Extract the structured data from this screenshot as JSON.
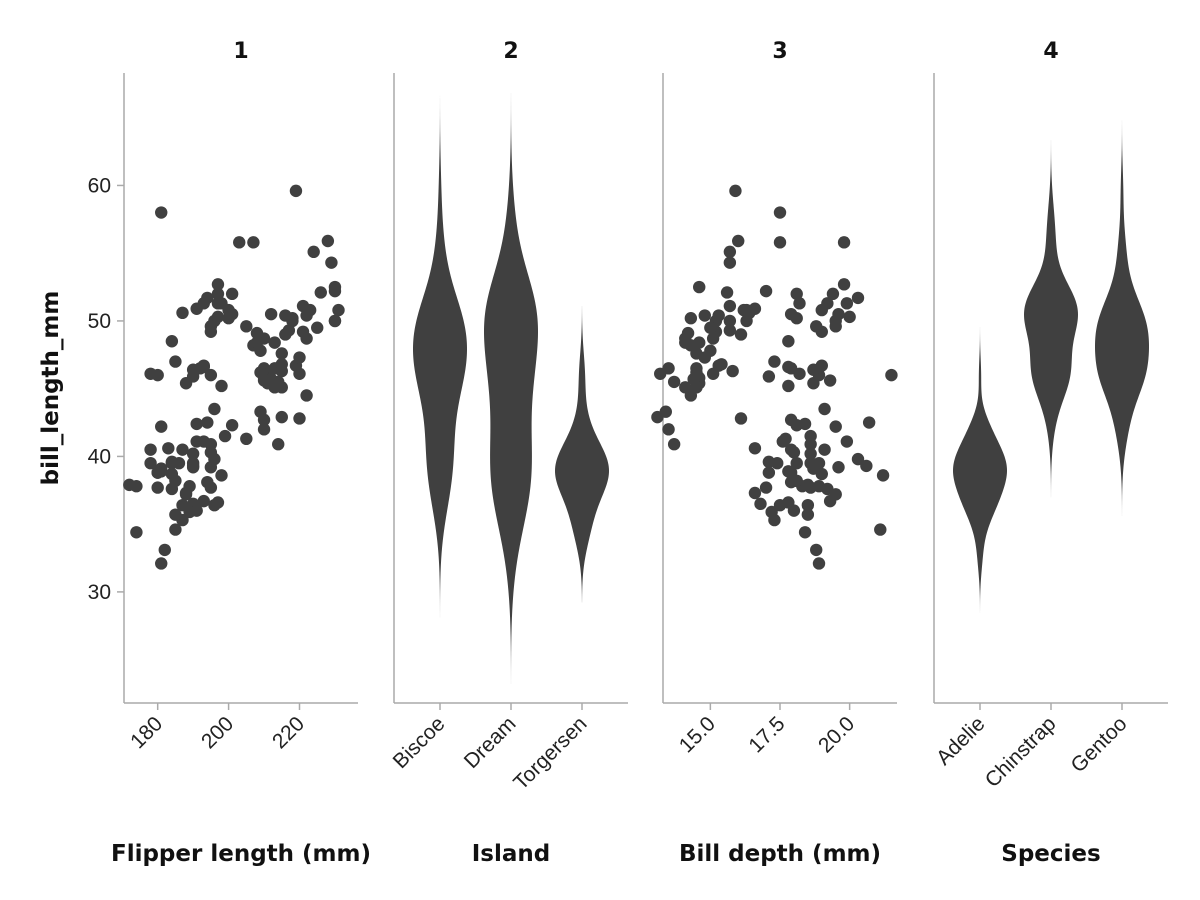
{
  "chart_data": {
    "type": "scatter+violin",
    "color": "#404040",
    "axis_color": "#aaaaaa",
    "grid": false,
    "ylabel": "bill_length_mm",
    "ylim": [
      21.8,
      68.3
    ],
    "yticks": [
      30,
      40,
      50,
      60
    ],
    "panels": [
      {
        "title": "1",
        "type": "scatter",
        "xvar": "flipper",
        "xlabel": "Flipper length (mm)",
        "xlim": [
          170.5,
          236.5
        ],
        "xticks": [
          180,
          200,
          220
        ],
        "xticklabels": [
          "180",
          "200",
          "220"
        ]
      },
      {
        "title": "2",
        "type": "violin",
        "xvar": "island",
        "xlabel": "Island",
        "categories": [
          "Biscoe",
          "Dream",
          "Torgersen"
        ]
      },
      {
        "title": "3",
        "type": "scatter",
        "xvar": "depth",
        "xlabel": "Bill depth (mm)",
        "xlim": [
          13.3,
          21.7
        ],
        "xticks": [
          15.0,
          17.5,
          20.0
        ],
        "xticklabels": [
          "15.0",
          "17.5",
          "20.0"
        ]
      },
      {
        "title": "4",
        "type": "violin",
        "xvar": "species",
        "xlabel": "Species",
        "categories": [
          "Adelie",
          "Chinstrap",
          "Gentoo"
        ]
      }
    ],
    "columns": [
      "species",
      "island",
      "flipper",
      "depth",
      "length"
    ],
    "records": [
      [
        "Adelie",
        "Torgersen",
        181,
        18.7,
        39.1
      ],
      [
        "Adelie",
        "Torgersen",
        186,
        17.4,
        39.5
      ],
      [
        "Adelie",
        "Torgersen",
        195,
        18.0,
        40.3
      ],
      [
        "Adelie",
        "Torgersen",
        193,
        19.3,
        36.7
      ],
      [
        "Adelie",
        "Torgersen",
        190,
        20.6,
        39.3
      ],
      [
        "Adelie",
        "Torgersen",
        181,
        17.8,
        38.9
      ],
      [
        "Adelie",
        "Torgersen",
        195,
        19.6,
        39.2
      ],
      [
        "Adelie",
        "Torgersen",
        191,
        17.6,
        41.1
      ],
      [
        "Adelie",
        "Torgersen",
        198,
        21.2,
        38.6
      ],
      [
        "Adelie",
        "Torgersen",
        185,
        21.1,
        34.6
      ],
      [
        "Adelie",
        "Torgersen",
        197,
        17.8,
        36.6
      ],
      [
        "Adelie",
        "Torgersen",
        184,
        19.0,
        38.7
      ],
      [
        "Adelie",
        "Torgersen",
        194,
        20.7,
        42.5
      ],
      [
        "Adelie",
        "Torgersen",
        174,
        18.4,
        34.4
      ],
      [
        "Adelie",
        "Torgersen",
        180,
        21.5,
        46.0
      ],
      [
        "Adelie",
        "Torgersen",
        189,
        18.3,
        37.8
      ],
      [
        "Adelie",
        "Biscoe",
        174,
        18.9,
        37.8
      ],
      [
        "Adelie",
        "Biscoe",
        180,
        18.6,
        37.7
      ],
      [
        "Adelie",
        "Biscoe",
        189,
        17.2,
        35.9
      ],
      [
        "Adelie",
        "Biscoe",
        185,
        18.1,
        38.2
      ],
      [
        "Adelie",
        "Biscoe",
        180,
        17.1,
        38.8
      ],
      [
        "Adelie",
        "Biscoe",
        187,
        17.3,
        35.3
      ],
      [
        "Adelie",
        "Biscoe",
        183,
        16.6,
        40.6
      ],
      [
        "Adelie",
        "Biscoe",
        187,
        19.1,
        40.5
      ],
      [
        "Adelie",
        "Biscoe",
        172,
        18.5,
        37.9
      ],
      [
        "Adelie",
        "Biscoe",
        178,
        17.9,
        40.5
      ],
      [
        "Adelie",
        "Biscoe",
        190,
        18.6,
        39.5
      ],
      [
        "Adelie",
        "Biscoe",
        195,
        17.0,
        37.7
      ],
      [
        "Adelie",
        "Biscoe",
        184,
        17.1,
        39.6
      ],
      [
        "Adelie",
        "Biscoe",
        205,
        17.7,
        41.3
      ],
      [
        "Adelie",
        "Biscoe",
        210,
        17.9,
        42.7
      ],
      [
        "Adelie",
        "Dream",
        178,
        18.9,
        39.5
      ],
      [
        "Adelie",
        "Dream",
        188,
        19.5,
        37.2
      ],
      [
        "Adelie",
        "Dream",
        184,
        18.1,
        39.5
      ],
      [
        "Adelie",
        "Dream",
        195,
        18.6,
        40.9
      ],
      [
        "Adelie",
        "Dream",
        196,
        17.5,
        36.4
      ],
      [
        "Adelie",
        "Dream",
        190,
        18.8,
        39.2
      ],
      [
        "Adelie",
        "Dream",
        180,
        17.9,
        38.8
      ],
      [
        "Adelie",
        "Dream",
        181,
        19.5,
        42.2
      ],
      [
        "Adelie",
        "Dream",
        184,
        19.2,
        37.6
      ],
      [
        "Adelie",
        "Dream",
        196,
        20.3,
        39.8
      ],
      [
        "Adelie",
        "Dream",
        190,
        16.8,
        36.5
      ],
      [
        "Adelie",
        "Dream",
        182,
        18.8,
        33.1
      ],
      [
        "Adelie",
        "Dream",
        191,
        18.0,
        36.0
      ],
      [
        "Adelie",
        "Dream",
        188,
        16.6,
        37.3
      ],
      [
        "Adelie",
        "Dream",
        193,
        19.9,
        41.1
      ],
      [
        "Adelie",
        "Dream",
        187,
        18.5,
        36.4
      ],
      [
        "Adelie",
        "Dream",
        201,
        18.1,
        42.3
      ],
      [
        "Adelie",
        "Dream",
        199,
        18.6,
        41.5
      ],
      [
        "Adelie",
        "Dream",
        181,
        18.9,
        32.1
      ],
      [
        "Adelie",
        "Dream",
        194,
        17.9,
        38.1
      ],
      [
        "Adelie",
        "Dream",
        185,
        18.5,
        35.7
      ],
      [
        "Adelie",
        "Dream",
        190,
        18.6,
        40.2
      ],
      [
        "Chinstrap",
        "Dream",
        192,
        17.9,
        46.5
      ],
      [
        "Chinstrap",
        "Dream",
        196,
        19.5,
        50.0
      ],
      [
        "Chinstrap",
        "Dream",
        193,
        19.2,
        51.3
      ],
      [
        "Chinstrap",
        "Dream",
        188,
        18.7,
        45.4
      ],
      [
        "Chinstrap",
        "Dream",
        197,
        19.8,
        52.7
      ],
      [
        "Chinstrap",
        "Dream",
        198,
        17.8,
        45.2
      ],
      [
        "Chinstrap",
        "Dream",
        178,
        18.2,
        46.1
      ],
      [
        "Chinstrap",
        "Dream",
        197,
        18.2,
        51.3
      ],
      [
        "Chinstrap",
        "Dream",
        195,
        18.9,
        46.0
      ],
      [
        "Chinstrap",
        "Dream",
        198,
        19.9,
        51.3
      ],
      [
        "Chinstrap",
        "Dream",
        193,
        17.8,
        46.6
      ],
      [
        "Chinstrap",
        "Dream",
        194,
        20.3,
        51.7
      ],
      [
        "Chinstrap",
        "Dream",
        185,
        17.3,
        47.0
      ],
      [
        "Chinstrap",
        "Dream",
        201,
        18.1,
        52.0
      ],
      [
        "Chinstrap",
        "Dream",
        190,
        17.1,
        45.9
      ],
      [
        "Chinstrap",
        "Dream",
        201,
        19.6,
        50.5
      ],
      [
        "Chinstrap",
        "Dream",
        197,
        20.0,
        50.3
      ],
      [
        "Chinstrap",
        "Dream",
        181,
        17.5,
        58.0
      ],
      [
        "Chinstrap",
        "Dream",
        190,
        18.7,
        46.4
      ],
      [
        "Chinstrap",
        "Dream",
        195,
        19.0,
        49.2
      ],
      [
        "Chinstrap",
        "Dream",
        191,
        18.4,
        42.4
      ],
      [
        "Chinstrap",
        "Dream",
        184,
        17.8,
        48.5
      ],
      [
        "Chinstrap",
        "Dream",
        187,
        16.4,
        50.6
      ],
      [
        "Chinstrap",
        "Dream",
        193,
        19.0,
        46.7
      ],
      [
        "Chinstrap",
        "Dream",
        195,
        18.8,
        49.6
      ],
      [
        "Chinstrap",
        "Dream",
        197,
        19.4,
        52.0
      ],
      [
        "Chinstrap",
        "Dream",
        200,
        19.0,
        50.8
      ],
      [
        "Chinstrap",
        "Dream",
        200,
        18.1,
        50.2
      ],
      [
        "Chinstrap",
        "Dream",
        191,
        16.6,
        50.9
      ],
      [
        "Chinstrap",
        "Dream",
        205,
        19.5,
        49.6
      ],
      [
        "Chinstrap",
        "Dream",
        212,
        17.9,
        50.5
      ],
      [
        "Chinstrap",
        "Dream",
        207,
        19.8,
        55.8
      ],
      [
        "Chinstrap",
        "Dream",
        210,
        19.3,
        45.6
      ],
      [
        "Chinstrap",
        "Dream",
        203,
        17.5,
        55.8
      ],
      [
        "Chinstrap",
        "Dream",
        196,
        19.1,
        43.5
      ],
      [
        "Gentoo",
        "Biscoe",
        211,
        13.2,
        46.1
      ],
      [
        "Gentoo",
        "Biscoe",
        230,
        16.3,
        50.0
      ],
      [
        "Gentoo",
        "Biscoe",
        210,
        14.1,
        48.7
      ],
      [
        "Gentoo",
        "Biscoe",
        218,
        15.2,
        50.0
      ],
      [
        "Gentoo",
        "Biscoe",
        215,
        14.5,
        47.6
      ],
      [
        "Gentoo",
        "Biscoe",
        210,
        13.5,
        46.5
      ],
      [
        "Gentoo",
        "Biscoe",
        211,
        14.6,
        45.4
      ],
      [
        "Gentoo",
        "Biscoe",
        219,
        15.3,
        46.7
      ],
      [
        "Gentoo",
        "Biscoe",
        209,
        13.4,
        43.3
      ],
      [
        "Gentoo",
        "Biscoe",
        215,
        15.4,
        46.8
      ],
      [
        "Gentoo",
        "Biscoe",
        214,
        13.7,
        40.9
      ],
      [
        "Gentoo",
        "Biscoe",
        216,
        16.1,
        49.0
      ],
      [
        "Gentoo",
        "Biscoe",
        214,
        13.7,
        45.5
      ],
      [
        "Gentoo",
        "Biscoe",
        213,
        14.6,
        48.4
      ],
      [
        "Gentoo",
        "Biscoe",
        210,
        14.6,
        45.8
      ],
      [
        "Gentoo",
        "Biscoe",
        217,
        15.7,
        49.3
      ],
      [
        "Gentoo",
        "Biscoe",
        210,
        13.5,
        42.0
      ],
      [
        "Gentoo",
        "Biscoe",
        221,
        15.2,
        49.2
      ],
      [
        "Gentoo",
        "Biscoe",
        209,
        14.5,
        46.2
      ],
      [
        "Gentoo",
        "Biscoe",
        222,
        15.1,
        48.7
      ],
      [
        "Gentoo",
        "Biscoe",
        218,
        14.3,
        50.2
      ],
      [
        "Gentoo",
        "Biscoe",
        215,
        14.5,
        45.1
      ],
      [
        "Gentoo",
        "Biscoe",
        213,
        14.5,
        46.5
      ],
      [
        "Gentoo",
        "Biscoe",
        215,
        15.8,
        46.3
      ],
      [
        "Gentoo",
        "Biscoe",
        215,
        13.1,
        42.9
      ],
      [
        "Gentoo",
        "Biscoe",
        220,
        15.1,
        46.1
      ],
      [
        "Gentoo",
        "Biscoe",
        222,
        14.3,
        44.5
      ],
      [
        "Gentoo",
        "Biscoe",
        209,
        15.0,
        47.8
      ],
      [
        "Gentoo",
        "Biscoe",
        207,
        14.3,
        48.2
      ],
      [
        "Gentoo",
        "Biscoe",
        230,
        15.7,
        50.0
      ],
      [
        "Gentoo",
        "Biscoe",
        220,
        14.8,
        47.3
      ],
      [
        "Gentoo",
        "Biscoe",
        220,
        16.1,
        42.8
      ],
      [
        "Gentoo",
        "Biscoe",
        213,
        14.1,
        45.1
      ],
      [
        "Gentoo",
        "Biscoe",
        219,
        15.9,
        59.6
      ],
      [
        "Gentoo",
        "Biscoe",
        208,
        14.2,
        49.1
      ],
      [
        "Gentoo",
        "Biscoe",
        208,
        14.1,
        48.4
      ],
      [
        "Gentoo",
        "Biscoe",
        228,
        16.0,
        55.9
      ],
      [
        "Gentoo",
        "Biscoe",
        224,
        15.7,
        55.1
      ],
      [
        "Gentoo",
        "Biscoe",
        229,
        15.7,
        54.3
      ],
      [
        "Gentoo",
        "Biscoe",
        231,
        16.2,
        50.8
      ],
      [
        "Gentoo",
        "Biscoe",
        230,
        17.0,
        52.2
      ],
      [
        "Gentoo",
        "Biscoe",
        226,
        15.6,
        52.1
      ],
      [
        "Gentoo",
        "Biscoe",
        216,
        14.8,
        50.4
      ],
      [
        "Gentoo",
        "Biscoe",
        225,
        15.0,
        49.5
      ],
      [
        "Gentoo",
        "Biscoe",
        222,
        15.3,
        50.4
      ],
      [
        "Gentoo",
        "Biscoe",
        221,
        15.7,
        51.1
      ],
      [
        "Gentoo",
        "Biscoe",
        212,
        14.4,
        45.7
      ],
      [
        "Gentoo",
        "Biscoe",
        223,
        16.3,
        50.8
      ],
      [
        "Gentoo",
        "Biscoe",
        230,
        14.6,
        52.5
      ]
    ]
  }
}
